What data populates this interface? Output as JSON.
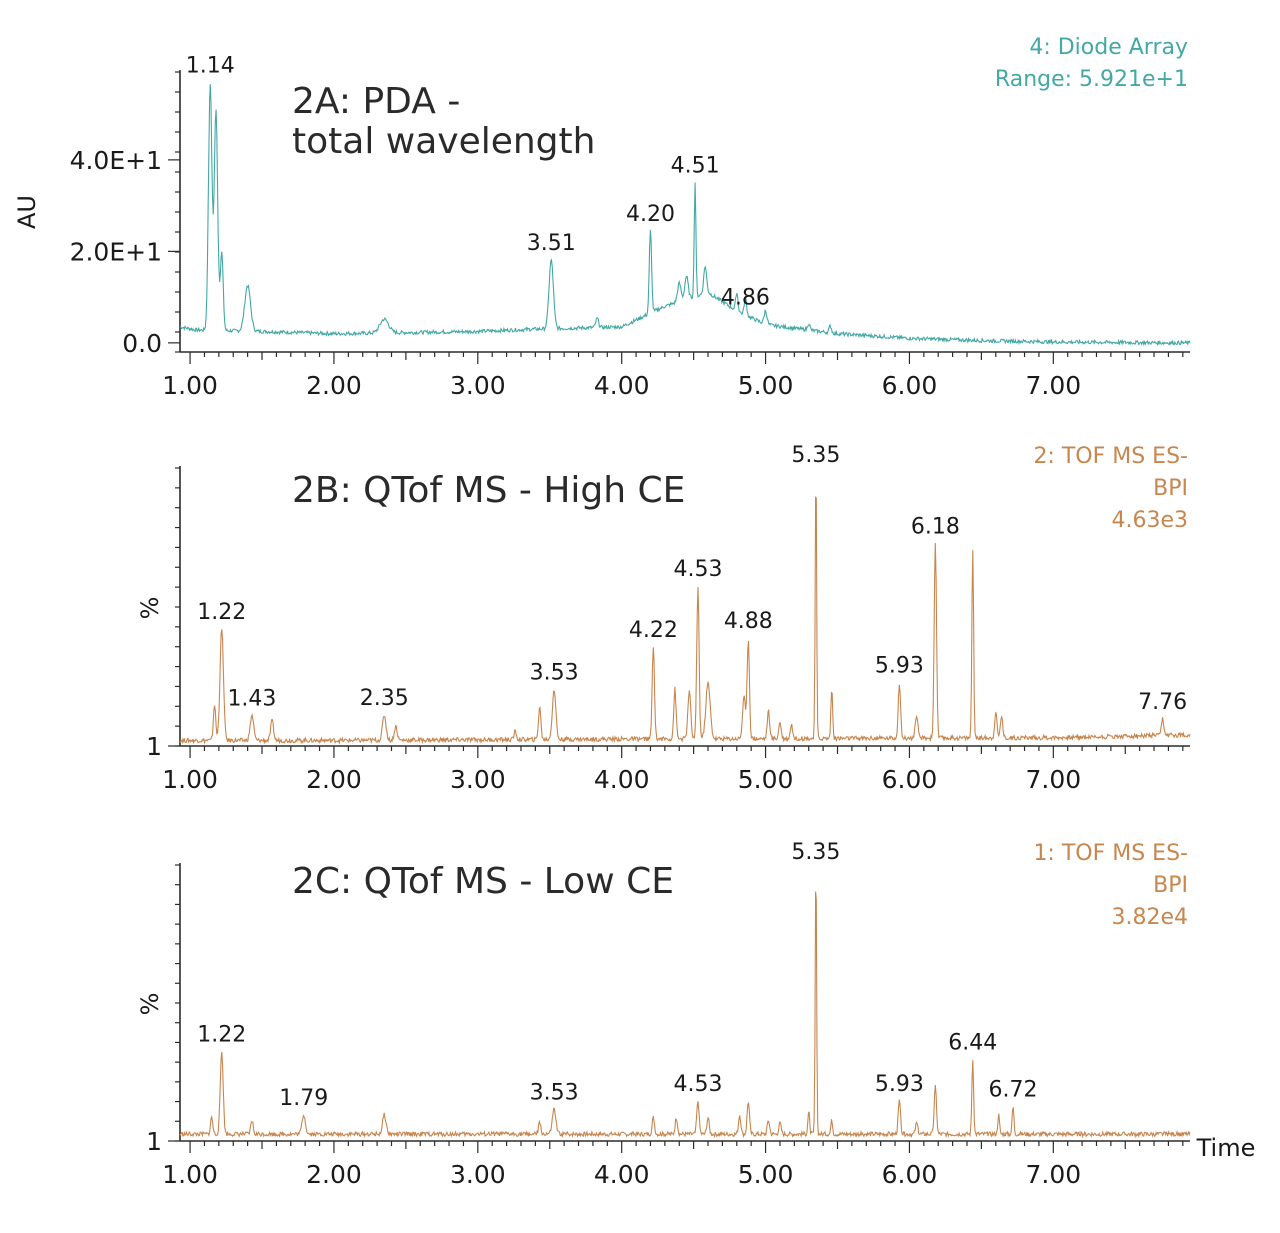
{
  "chart_data": [
    {
      "id": "2A",
      "type": "line",
      "title": "2A: PDA -",
      "subtitle": "total wavelength",
      "ylabel": "AU",
      "xlabel": "",
      "color": "#43a8a6",
      "info": [
        "4: Diode Array",
        "Range: 5.921e+1"
      ],
      "xlim": [
        0.93,
        7.95
      ],
      "ylim": [
        -2,
        59.21
      ],
      "x_ticks": [
        1.0,
        2.0,
        3.0,
        4.0,
        5.0,
        6.0,
        7.0
      ],
      "x_tick_labels": [
        "1.00",
        "2.00",
        "3.00",
        "4.00",
        "5.00",
        "6.00",
        "7.00"
      ],
      "y_ticks": [
        0,
        20,
        40
      ],
      "y_tick_labels": [
        "0.0",
        "2.0E+1",
        "4.0E+1"
      ],
      "baseline": [
        [
          0.93,
          3.5
        ],
        [
          1.05,
          2.8
        ],
        [
          1.5,
          2.5
        ],
        [
          2.0,
          2.0
        ],
        [
          2.6,
          2.3
        ],
        [
          3.0,
          2.5
        ],
        [
          3.4,
          3.0
        ],
        [
          4.0,
          3.5
        ],
        [
          4.3,
          8.0
        ],
        [
          4.6,
          11.0
        ],
        [
          4.8,
          7.0
        ],
        [
          5.0,
          4.0
        ],
        [
          5.5,
          2.0
        ],
        [
          6.0,
          1.0
        ],
        [
          6.5,
          0.5
        ],
        [
          7.0,
          0.2
        ],
        [
          7.8,
          0.0
        ],
        [
          7.95,
          0.0
        ]
      ],
      "peaks": [
        {
          "rt": 1.14,
          "height": 54.0,
          "width": 0.012
        },
        {
          "rt": 1.18,
          "height": 48.0,
          "width": 0.012
        },
        {
          "rt": 1.22,
          "height": 17.0,
          "width": 0.01
        },
        {
          "rt": 1.4,
          "height": 10.0,
          "width": 0.02
        },
        {
          "rt": 2.35,
          "height": 3.0,
          "width": 0.03
        },
        {
          "rt": 3.51,
          "height": 15.0,
          "width": 0.015
        },
        {
          "rt": 3.83,
          "height": 2.0,
          "width": 0.01
        },
        {
          "rt": 4.2,
          "height": 18.0,
          "width": 0.008
        },
        {
          "rt": 4.4,
          "height": 4.0,
          "width": 0.012
        },
        {
          "rt": 4.45,
          "height": 5.0,
          "width": 0.012
        },
        {
          "rt": 4.51,
          "height": 25.0,
          "width": 0.006
        },
        {
          "rt": 4.58,
          "height": 6.0,
          "width": 0.01
        },
        {
          "rt": 4.8,
          "height": 4.0,
          "width": 0.008
        },
        {
          "rt": 4.86,
          "height": 4.0,
          "width": 0.008
        },
        {
          "rt": 5.0,
          "height": 3.0,
          "width": 0.01
        },
        {
          "rt": 5.3,
          "height": 1.5,
          "width": 0.008
        },
        {
          "rt": 5.45,
          "height": 1.5,
          "width": 0.008
        }
      ],
      "peak_labels": [
        {
          "rt": 1.14,
          "text": "1.14"
        },
        {
          "rt": 3.51,
          "text": "3.51"
        },
        {
          "rt": 4.2,
          "text": "4.20"
        },
        {
          "rt": 4.51,
          "text": "4.51"
        },
        {
          "rt": 4.86,
          "text": "4.86"
        }
      ]
    },
    {
      "id": "2B",
      "type": "line",
      "title": "2B: QTof MS - High CE",
      "subtitle": "",
      "ylabel": "%",
      "xlabel": "",
      "color": "#c8864f",
      "info": [
        "2: TOF MS ES-",
        "BPI",
        "4.63e3"
      ],
      "xlim": [
        0.93,
        7.95
      ],
      "ylim": [
        0,
        100
      ],
      "x_ticks": [
        1.0,
        2.0,
        3.0,
        4.0,
        5.0,
        6.0,
        7.0
      ],
      "x_tick_labels": [
        "1.00",
        "2.00",
        "3.00",
        "4.00",
        "5.00",
        "6.00",
        "7.00"
      ],
      "y_ticks": [
        0
      ],
      "y_tick_labels": [
        "1"
      ],
      "baseline": [
        [
          0.93,
          2.0
        ],
        [
          2.0,
          2.0
        ],
        [
          4.0,
          2.5
        ],
        [
          7.0,
          3.0
        ],
        [
          7.95,
          4.0
        ]
      ],
      "peaks": [
        {
          "rt": 1.17,
          "height": 13.0,
          "width": 0.008
        },
        {
          "rt": 1.22,
          "height": 40.0,
          "width": 0.012
        },
        {
          "rt": 1.43,
          "height": 9.0,
          "width": 0.012
        },
        {
          "rt": 1.57,
          "height": 7.0,
          "width": 0.01
        },
        {
          "rt": 2.35,
          "height": 9.0,
          "width": 0.012
        },
        {
          "rt": 2.43,
          "height": 5.0,
          "width": 0.01
        },
        {
          "rt": 3.26,
          "height": 3.0,
          "width": 0.008
        },
        {
          "rt": 3.43,
          "height": 12.0,
          "width": 0.008
        },
        {
          "rt": 3.53,
          "height": 18.0,
          "width": 0.012
        },
        {
          "rt": 4.22,
          "height": 33.0,
          "width": 0.008
        },
        {
          "rt": 4.37,
          "height": 18.0,
          "width": 0.008
        },
        {
          "rt": 4.47,
          "height": 17.0,
          "width": 0.01
        },
        {
          "rt": 4.53,
          "height": 55.0,
          "width": 0.008
        },
        {
          "rt": 4.6,
          "height": 20.0,
          "width": 0.015
        },
        {
          "rt": 4.85,
          "height": 15.0,
          "width": 0.01
        },
        {
          "rt": 4.88,
          "height": 36.0,
          "width": 0.008
        },
        {
          "rt": 5.02,
          "height": 10.0,
          "width": 0.008
        },
        {
          "rt": 5.1,
          "height": 6.0,
          "width": 0.008
        },
        {
          "rt": 5.18,
          "height": 5.0,
          "width": 0.008
        },
        {
          "rt": 5.35,
          "height": 98.0,
          "width": 0.005
        },
        {
          "rt": 5.46,
          "height": 18.0,
          "width": 0.006
        },
        {
          "rt": 5.93,
          "height": 20.0,
          "width": 0.008
        },
        {
          "rt": 6.05,
          "height": 7.0,
          "width": 0.01
        },
        {
          "rt": 6.18,
          "height": 70.0,
          "width": 0.008
        },
        {
          "rt": 6.44,
          "height": 68.0,
          "width": 0.006
        },
        {
          "rt": 6.6,
          "height": 9.0,
          "width": 0.008
        },
        {
          "rt": 6.64,
          "height": 8.0,
          "width": 0.008
        },
        {
          "rt": 7.76,
          "height": 6.0,
          "width": 0.008
        }
      ],
      "peak_labels": [
        {
          "rt": 1.22,
          "text": "1.22"
        },
        {
          "rt": 1.43,
          "text": "1.43"
        },
        {
          "rt": 2.35,
          "text": "2.35"
        },
        {
          "rt": 3.53,
          "text": "3.53"
        },
        {
          "rt": 4.22,
          "text": "4.22"
        },
        {
          "rt": 4.53,
          "text": "4.53"
        },
        {
          "rt": 4.88,
          "text": "4.88"
        },
        {
          "rt": 5.35,
          "text": "5.35"
        },
        {
          "rt": 5.93,
          "text": "5.93"
        },
        {
          "rt": 6.18,
          "text": "6.18"
        },
        {
          "rt": 7.76,
          "text": "7.76"
        }
      ]
    },
    {
      "id": "2C",
      "type": "line",
      "title": "2C: QTof MS - Low CE",
      "subtitle": "",
      "ylabel": "%",
      "xlabel": "Time",
      "color": "#c8864f",
      "info": [
        "1: TOF MS ES-",
        "BPI",
        "3.82e4"
      ],
      "xlim": [
        0.93,
        7.95
      ],
      "ylim": [
        0,
        100
      ],
      "x_ticks": [
        1.0,
        2.0,
        3.0,
        4.0,
        5.0,
        6.0,
        7.0
      ],
      "x_tick_labels": [
        "1.00",
        "2.00",
        "3.00",
        "4.00",
        "5.00",
        "6.00",
        "7.00"
      ],
      "y_ticks": [
        0
      ],
      "y_tick_labels": [
        "1"
      ],
      "baseline": [
        [
          0.93,
          2.5
        ],
        [
          2.0,
          2.5
        ],
        [
          5.0,
          2.5
        ],
        [
          7.95,
          2.5
        ]
      ],
      "peaks": [
        {
          "rt": 1.15,
          "height": 6.0,
          "width": 0.008
        },
        {
          "rt": 1.22,
          "height": 30.0,
          "width": 0.01
        },
        {
          "rt": 1.43,
          "height": 5.0,
          "width": 0.008
        },
        {
          "rt": 1.79,
          "height": 7.0,
          "width": 0.012
        },
        {
          "rt": 2.35,
          "height": 7.0,
          "width": 0.012
        },
        {
          "rt": 3.43,
          "height": 4.0,
          "width": 0.008
        },
        {
          "rt": 3.53,
          "height": 9.0,
          "width": 0.012
        },
        {
          "rt": 4.22,
          "height": 6.0,
          "width": 0.008
        },
        {
          "rt": 4.38,
          "height": 6.0,
          "width": 0.008
        },
        {
          "rt": 4.53,
          "height": 12.0,
          "width": 0.008
        },
        {
          "rt": 4.6,
          "height": 6.0,
          "width": 0.008
        },
        {
          "rt": 4.82,
          "height": 7.0,
          "width": 0.008
        },
        {
          "rt": 4.88,
          "height": 12.0,
          "width": 0.008
        },
        {
          "rt": 5.02,
          "height": 5.0,
          "width": 0.008
        },
        {
          "rt": 5.1,
          "height": 4.0,
          "width": 0.008
        },
        {
          "rt": 5.3,
          "height": 8.0,
          "width": 0.006
        },
        {
          "rt": 5.35,
          "height": 98.0,
          "width": 0.005
        },
        {
          "rt": 5.46,
          "height": 5.0,
          "width": 0.006
        },
        {
          "rt": 5.93,
          "height": 12.0,
          "width": 0.008
        },
        {
          "rt": 6.05,
          "height": 4.0,
          "width": 0.008
        },
        {
          "rt": 6.18,
          "height": 17.0,
          "width": 0.008
        },
        {
          "rt": 6.44,
          "height": 27.0,
          "width": 0.006
        },
        {
          "rt": 6.62,
          "height": 7.0,
          "width": 0.006
        },
        {
          "rt": 6.72,
          "height": 10.0,
          "width": 0.006
        }
      ],
      "peak_labels": [
        {
          "rt": 1.22,
          "text": "1.22"
        },
        {
          "rt": 1.79,
          "text": "1.79"
        },
        {
          "rt": 3.53,
          "text": "3.53"
        },
        {
          "rt": 4.53,
          "text": "4.53"
        },
        {
          "rt": 5.35,
          "text": "5.35"
        },
        {
          "rt": 5.93,
          "text": "5.93"
        },
        {
          "rt": 6.44,
          "text": "6.44"
        },
        {
          "rt": 6.72,
          "text": "6.72"
        }
      ]
    }
  ]
}
